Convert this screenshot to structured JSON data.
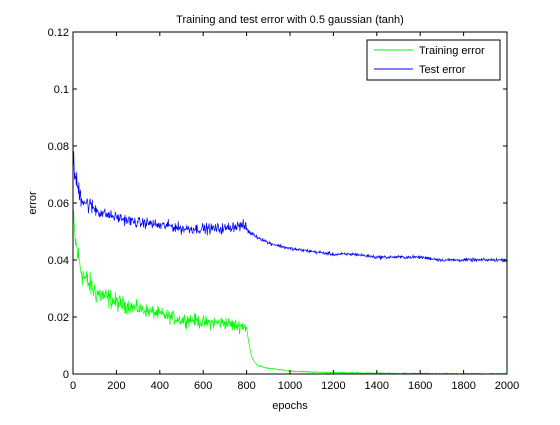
{
  "chart_data": {
    "type": "line",
    "title": "Training and test error with 0.5 gaussian (tanh)",
    "xlabel": "epochs",
    "ylabel": "error",
    "xlim": [
      0,
      2000
    ],
    "ylim": [
      0,
      0.12
    ],
    "x_ticks": [
      0,
      200,
      400,
      600,
      800,
      1000,
      1200,
      1400,
      1600,
      1800,
      2000
    ],
    "y_ticks": [
      0,
      0.02,
      0.04,
      0.06,
      0.08,
      0.1,
      0.12
    ],
    "x_tick_labels": [
      "0",
      "200",
      "400",
      "600",
      "800",
      "1000",
      "1200",
      "1400",
      "1600",
      "1800",
      "2000"
    ],
    "y_tick_labels": [
      "0",
      "0.02",
      "0.04",
      "0.06",
      "0.08",
      "0.1",
      "0.12"
    ],
    "grid": false,
    "legend_position": "top-right",
    "series": [
      {
        "name": "Training error",
        "color": "#00ff00",
        "x": [
          1,
          10,
          20,
          30,
          40,
          50,
          60,
          80,
          100,
          120,
          150,
          180,
          200,
          250,
          300,
          350,
          400,
          450,
          500,
          550,
          600,
          650,
          700,
          750,
          790,
          800,
          810,
          820,
          830,
          840,
          850,
          870,
          900,
          950,
          1000,
          1100,
          1200,
          1300,
          1400,
          1500,
          1600,
          1700,
          1800,
          1900,
          2000
        ],
        "values": [
          0.055,
          0.047,
          0.043,
          0.039,
          0.036,
          0.034,
          0.033,
          0.031,
          0.029,
          0.028,
          0.027,
          0.026,
          0.025,
          0.024,
          0.023,
          0.022,
          0.021,
          0.02,
          0.019,
          0.019,
          0.018,
          0.018,
          0.018,
          0.017,
          0.017,
          0.016,
          0.011,
          0.007,
          0.005,
          0.004,
          0.003,
          0.0025,
          0.002,
          0.0015,
          0.001,
          0.0007,
          0.0005,
          0.0004,
          0.0003,
          0.0002,
          0.0002,
          0.0001,
          0.0001,
          0.0001,
          0.0001
        ]
      },
      {
        "name": "Test error",
        "color": "#0000ff",
        "x": [
          1,
          10,
          20,
          30,
          40,
          50,
          60,
          80,
          100,
          120,
          150,
          200,
          250,
          300,
          350,
          400,
          450,
          500,
          550,
          600,
          650,
          700,
          750,
          790,
          800,
          810,
          830,
          850,
          880,
          900,
          950,
          1000,
          1100,
          1200,
          1300,
          1400,
          1500,
          1600,
          1700,
          1800,
          1900,
          2000
        ],
        "values": [
          0.075,
          0.069,
          0.066,
          0.064,
          0.062,
          0.061,
          0.06,
          0.059,
          0.058,
          0.057,
          0.056,
          0.055,
          0.054,
          0.053,
          0.053,
          0.052,
          0.052,
          0.051,
          0.051,
          0.051,
          0.051,
          0.051,
          0.052,
          0.052,
          0.051,
          0.05,
          0.049,
          0.048,
          0.047,
          0.046,
          0.045,
          0.044,
          0.043,
          0.042,
          0.042,
          0.041,
          0.041,
          0.041,
          0.04,
          0.04,
          0.04,
          0.04
        ]
      }
    ]
  }
}
